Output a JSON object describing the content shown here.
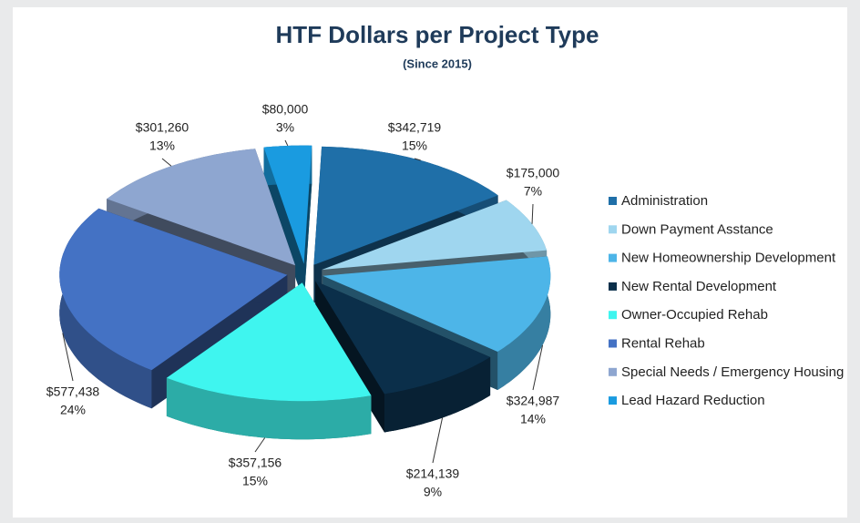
{
  "chart_data": {
    "type": "pie3d",
    "title": "HTF Dollars per Project Type",
    "subtitle": "(Since 2015)",
    "categories": [
      "Administration",
      "Down Payment Asstance",
      "New Homeownership Development",
      "New Rental Development",
      "Owner-Occupied Rehab",
      "Rental Rehab",
      "Special Needs / Emergency Housing",
      "Lead Hazard Reduction"
    ],
    "values": [
      342719,
      175000,
      324987,
      214139,
      357156,
      577438,
      301260,
      80000
    ],
    "value_labels": [
      "$342,719",
      "$175,000",
      "$324,987",
      "$214,139",
      "$357,156",
      "$577,438",
      "$301,260",
      "$80,000"
    ],
    "percent_labels": [
      "15%",
      "7%",
      "14%",
      "9%",
      "15%",
      "24%",
      "13%",
      "3%"
    ],
    "colors": [
      "#1f6fa8",
      "#9fd6ef",
      "#4db5e8",
      "#0b2f4a",
      "#3ff5ef",
      "#4472c4",
      "#8ea6d0",
      "#1a9be0"
    ],
    "legend": "right"
  }
}
